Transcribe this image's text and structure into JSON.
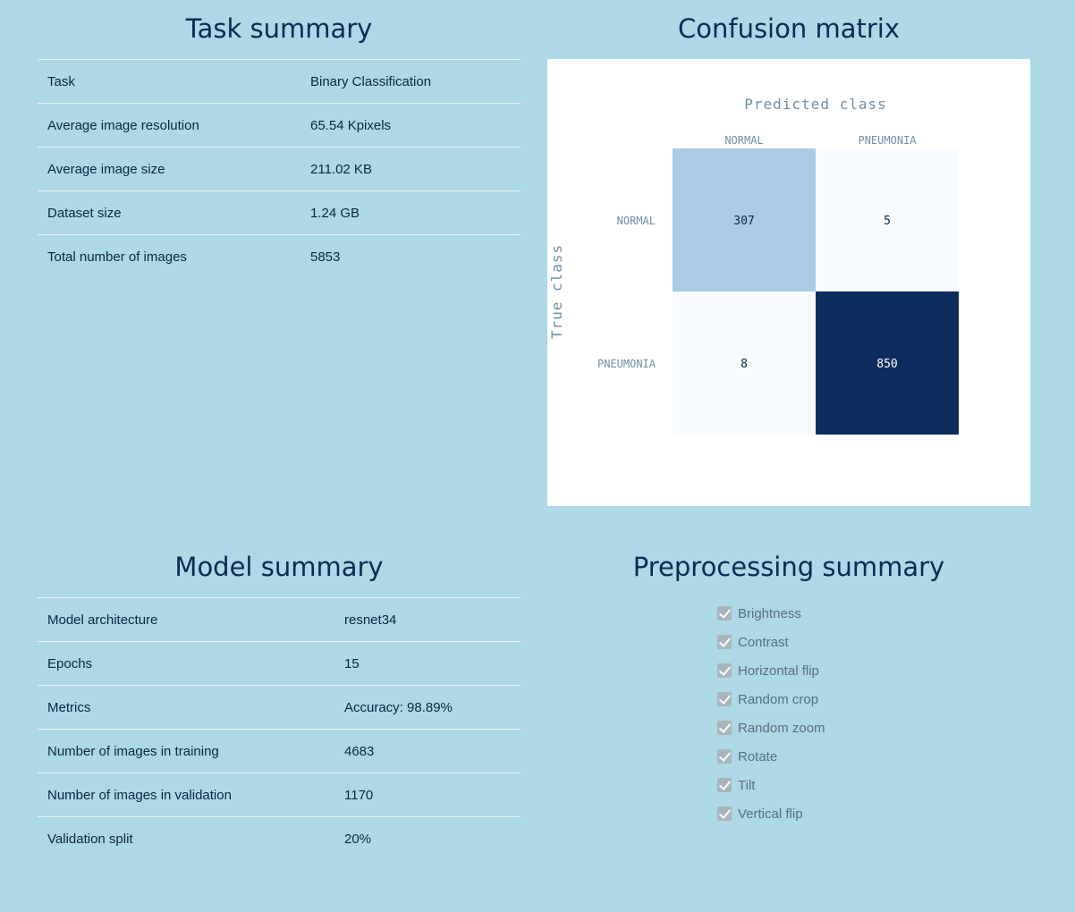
{
  "task_summary": {
    "title": "Task summary",
    "rows": [
      {
        "key": "Task",
        "value": "Binary Classification"
      },
      {
        "key": "Average image resolution",
        "value": "65.54 Kpixels"
      },
      {
        "key": "Average image size",
        "value": "211.02 KB"
      },
      {
        "key": "Dataset size",
        "value": "1.24 GB"
      },
      {
        "key": "Total number of images",
        "value": "5853"
      }
    ]
  },
  "confusion_matrix": {
    "title": "Confusion matrix",
    "x_title": "Predicted class",
    "y_title": "True class",
    "classes": [
      "NORMAL",
      "PNEUMONIA"
    ],
    "values": [
      [
        307,
        5
      ],
      [
        8,
        850
      ]
    ],
    "colors": {
      "low": "#f7fbff",
      "high": "#0d2d5e",
      "label": "#6f8fa8"
    }
  },
  "model_summary": {
    "title": "Model summary",
    "rows": [
      {
        "key": "Model architecture",
        "value": "resnet34"
      },
      {
        "key": "Epochs",
        "value": "15"
      },
      {
        "key": "Metrics",
        "value": "Accuracy: 98.89%"
      },
      {
        "key": "Number of images in training",
        "value": "4683"
      },
      {
        "key": "Number of images in validation",
        "value": "1170"
      },
      {
        "key": "Validation split",
        "value": "20%"
      }
    ]
  },
  "preprocessing_summary": {
    "title": "Preprocessing summary",
    "items": [
      {
        "label": "Brightness",
        "checked": true,
        "icon": "checkmark-icon"
      },
      {
        "label": "Contrast",
        "checked": true,
        "icon": "checkmark-icon"
      },
      {
        "label": "Horizontal flip",
        "checked": true,
        "icon": "checkmark-icon"
      },
      {
        "label": "Random crop",
        "checked": true,
        "icon": "checkmark-icon"
      },
      {
        "label": "Random zoom",
        "checked": true,
        "icon": "checkmark-icon"
      },
      {
        "label": "Rotate",
        "checked": true,
        "icon": "checkmark-icon"
      },
      {
        "label": "Tilt",
        "checked": true,
        "icon": "checkmark-icon"
      },
      {
        "label": "Vertical flip",
        "checked": true,
        "icon": "checkmark-icon"
      }
    ]
  },
  "theme": {
    "background": "#add8e6",
    "heading": "#0b2a55",
    "divider": "#e8f2f6"
  }
}
